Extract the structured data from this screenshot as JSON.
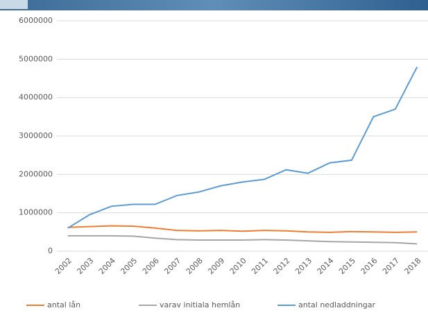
{
  "chart_data": {
    "type": "line",
    "categories": [
      "2002",
      "2003",
      "2004",
      "2005",
      "2006",
      "2007",
      "2008",
      "2009",
      "2010",
      "2011",
      "2012",
      "2013",
      "2014",
      "2015",
      "2016",
      "2017",
      "2018"
    ],
    "series": [
      {
        "name": "antal lån",
        "color": "#ed7d31",
        "values": [
          620000,
          640000,
          660000,
          650000,
          600000,
          540000,
          530000,
          540000,
          520000,
          540000,
          530000,
          500000,
          490000,
          510000,
          500000,
          490000,
          500000
        ]
      },
      {
        "name": "varav initiala hemlån",
        "color": "#a5a5a5",
        "values": [
          400000,
          400000,
          400000,
          390000,
          340000,
          300000,
          290000,
          290000,
          290000,
          300000,
          290000,
          270000,
          250000,
          240000,
          230000,
          220000,
          190000
        ]
      },
      {
        "name": "antal nedladdningar",
        "color": "#5b9bd5",
        "values": [
          600000,
          950000,
          1170000,
          1220000,
          1220000,
          1450000,
          1540000,
          1700000,
          1800000,
          1870000,
          2120000,
          2030000,
          2300000,
          2370000,
          3500000,
          3700000,
          4800000
        ]
      }
    ],
    "ylim": [
      0,
      6000000
    ],
    "yticks": [
      0,
      1000000,
      2000000,
      3000000,
      4000000,
      5000000,
      6000000
    ],
    "grid": true
  }
}
